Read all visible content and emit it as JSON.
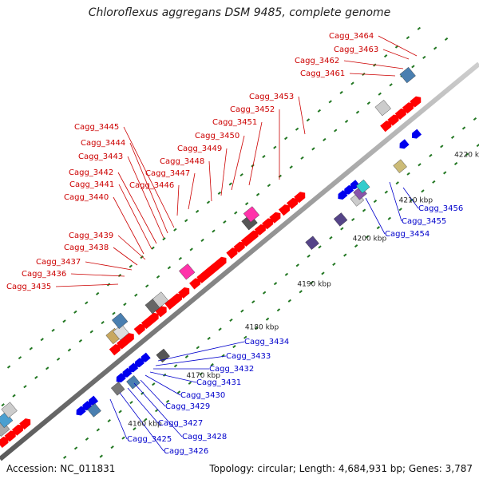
{
  "title": "Chloroflexus aggregans DSM 9485, complete genome",
  "footer": {
    "accession": "Accession: NC_011831",
    "topology": "Topology: circular; Length: 4,684,931 bp; Genes: 3,787"
  },
  "ticks": [
    "4160 kbp",
    "4170 kbp",
    "4180 kbp",
    "4190 kbp",
    "4200 kbp",
    "4210 kbp",
    "4220 kbp"
  ],
  "forward_labels": [
    "Cagg_3464",
    "Cagg_3463",
    "Cagg_3462",
    "Cagg_3461",
    "Cagg_3453",
    "Cagg_3452",
    "Cagg_3451",
    "Cagg_3450",
    "Cagg_3449",
    "Cagg_3448",
    "Cagg_3447",
    "Cagg_3446",
    "Cagg_3445",
    "Cagg_3444",
    "Cagg_3443",
    "Cagg_3442",
    "Cagg_3441",
    "Cagg_3440",
    "Cagg_3439",
    "Cagg_3438",
    "Cagg_3437",
    "Cagg_3436",
    "Cagg_3435"
  ],
  "reverse_labels": [
    "Cagg_3456",
    "Cagg_3455",
    "Cagg_3454",
    "Cagg_3434",
    "Cagg_3433",
    "Cagg_3432",
    "Cagg_3431",
    "Cagg_3430",
    "Cagg_3429",
    "Cagg_3428",
    "Cagg_3427",
    "Cagg_3426",
    "Cagg_3425"
  ],
  "colors": {
    "forward_gene": "#ff0000",
    "reverse_gene": "#0000ee",
    "forward_label": "#cc0000",
    "reverse_label": "#0000cc",
    "backbone": "#9a9a9a",
    "tick": "#227722"
  }
}
